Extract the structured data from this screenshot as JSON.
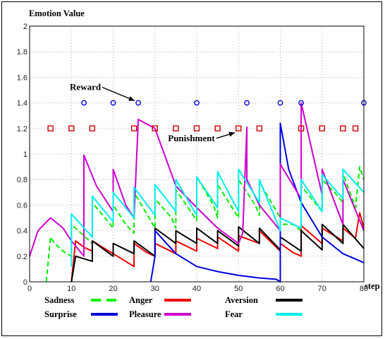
{
  "chart_data": {
    "type": "line",
    "title": "",
    "ylabel": "Emotion Value",
    "xlabel": "step",
    "xlim": [
      0,
      80
    ],
    "ylim": [
      0,
      2
    ],
    "xticks": [
      0,
      10,
      20,
      30,
      40,
      50,
      60,
      70,
      80
    ],
    "yticks": [
      0,
      0.2,
      0.4,
      0.6,
      0.8,
      1,
      1.2,
      1.4,
      1.6,
      1.8,
      2
    ],
    "grid": "dotted",
    "legend": "bottom",
    "series": [
      {
        "name": "Sadness",
        "color": "#00ee00",
        "dash": "dashed",
        "x": [
          4,
          5,
          6,
          7,
          8,
          9,
          10,
          10,
          13,
          15,
          15,
          20,
          20,
          23,
          25,
          25,
          30,
          30,
          34,
          35,
          35,
          40,
          40,
          44,
          45,
          45,
          50,
          50,
          54,
          55,
          55,
          60,
          60,
          63,
          65,
          65,
          70,
          70,
          73,
          75,
          75,
          78,
          79,
          80
        ],
        "y": [
          0,
          0.35,
          0.3,
          0.27,
          0.24,
          0.22,
          0.2,
          0.45,
          0.36,
          0.3,
          0.62,
          0.42,
          0.6,
          0.45,
          0.38,
          0.7,
          0.42,
          0.65,
          0.5,
          0.42,
          0.72,
          0.48,
          0.82,
          0.6,
          0.5,
          0.76,
          0.5,
          0.8,
          0.6,
          0.52,
          0.78,
          0.5,
          0.45,
          0.45,
          0.4,
          0.75,
          0.55,
          0.8,
          0.7,
          0.62,
          0.85,
          0.58,
          0.9,
          0.8
        ]
      },
      {
        "name": "Anger",
        "color": "#ee0000",
        "x": [
          10,
          11,
          13,
          15,
          15,
          20,
          25,
          25,
          28,
          30,
          30,
          35,
          35,
          40,
          40,
          45,
          45,
          50,
          50,
          55,
          55,
          60,
          60,
          63,
          65,
          65,
          70,
          70,
          75,
          75,
          78,
          79,
          80
        ],
        "y": [
          0,
          0.32,
          0.27,
          0.24,
          0.32,
          0.22,
          0.12,
          0.3,
          0.23,
          0.2,
          0.3,
          0.22,
          0.32,
          0.24,
          0.34,
          0.26,
          0.35,
          0.24,
          0.36,
          0.3,
          0.4,
          0.24,
          0.3,
          0.23,
          0.2,
          0.44,
          0.3,
          0.42,
          0.32,
          0.42,
          0.34,
          0.54,
          0.42
        ]
      },
      {
        "name": "Aversion",
        "color": "#000000",
        "x": [
          10,
          11,
          15,
          15,
          20,
          20,
          25,
          25,
          30,
          30,
          35,
          35,
          40,
          40,
          45,
          45,
          50,
          50,
          55,
          55,
          60,
          60,
          65,
          65,
          70,
          70,
          75,
          75,
          80
        ],
        "y": [
          0,
          0.2,
          0.16,
          0.32,
          0.2,
          0.3,
          0.22,
          0.32,
          0.2,
          0.42,
          0.3,
          0.4,
          0.3,
          0.42,
          0.3,
          0.4,
          0.28,
          0.43,
          0.3,
          0.42,
          0.25,
          0.35,
          0.24,
          0.4,
          0.25,
          0.45,
          0.3,
          0.45,
          0.26
        ]
      },
      {
        "name": "Surprise",
        "color": "#0000dd",
        "x": [
          29,
          30,
          30,
          35,
          40,
          45,
          50,
          55,
          59,
          60,
          60,
          62,
          65,
          70,
          75,
          80
        ],
        "y": [
          0,
          0.2,
          0.4,
          0.22,
          0.12,
          0.08,
          0.05,
          0.03,
          0.02,
          0,
          1.24,
          0.88,
          0.62,
          0.35,
          0.22,
          0.15
        ]
      },
      {
        "name": "Pleasure",
        "color": "#cc00cc",
        "x": [
          0,
          2,
          5,
          8,
          10,
          10,
          13,
          13,
          16,
          20,
          20,
          23,
          25,
          25,
          26,
          30,
          35,
          40,
          45,
          50,
          51,
          52,
          52,
          55,
          60,
          60,
          65,
          65,
          70,
          70,
          75,
          75,
          80
        ],
        "y": [
          0.2,
          0.4,
          0.5,
          0.42,
          0.32,
          0.32,
          0.2,
          0.99,
          0.75,
          0.55,
          0.88,
          0.6,
          0.5,
          0.5,
          1.27,
          1.2,
          0.75,
          0.58,
          0.42,
          0.3,
          0.38,
          1.21,
          0.8,
          0.6,
          0.4,
          0.92,
          0.65,
          1.4,
          0.68,
          0.88,
          0.45,
          0.8,
          0.4
        ]
      },
      {
        "name": "Fear",
        "color": "#00eeee",
        "x": [
          10,
          10,
          15,
          15,
          20,
          20,
          25,
          25,
          30,
          30,
          35,
          35,
          40,
          40,
          45,
          45,
          50,
          50,
          55,
          55,
          60,
          60,
          65,
          65,
          70,
          70,
          75,
          75,
          80
        ],
        "y": [
          0.12,
          0.53,
          0.35,
          0.67,
          0.47,
          0.7,
          0.5,
          0.74,
          0.52,
          0.76,
          0.55,
          0.8,
          0.52,
          0.82,
          0.58,
          0.86,
          0.55,
          0.88,
          0.62,
          0.8,
          0.4,
          0.5,
          0.42,
          0.8,
          0.55,
          0.84,
          0.65,
          0.88,
          0.7
        ]
      }
    ],
    "markers": [
      {
        "name": "Reward",
        "shape": "circle",
        "color": "#0000cc",
        "y": 1.4,
        "x": [
          13,
          20,
          26,
          40,
          52,
          60,
          65,
          80
        ]
      },
      {
        "name": "Punishment",
        "shape": "square",
        "color": "#cc0000",
        "y": 1.2,
        "x": [
          5,
          10,
          15,
          25,
          30,
          35,
          40,
          45,
          50,
          55,
          65,
          70,
          75,
          78
        ]
      }
    ],
    "annotations": [
      {
        "text": "Reward",
        "point": [
          26,
          1.4
        ]
      },
      {
        "text": "Punishment",
        "point": [
          50,
          1.2
        ]
      }
    ]
  }
}
